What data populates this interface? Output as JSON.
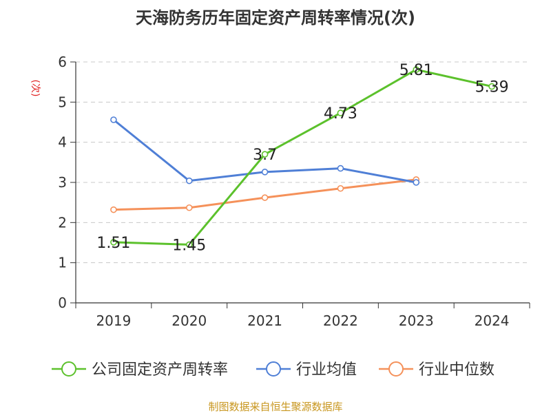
{
  "chart_data": {
    "type": "line",
    "title": "天海防务历年固定资产周转率情况(次)",
    "ylabel": "(次)",
    "xlabel": "",
    "categories": [
      "2019",
      "2020",
      "2021",
      "2022",
      "2023",
      "2024"
    ],
    "ylim": [
      0,
      6
    ],
    "yticks": [
      0,
      1,
      2,
      3,
      4,
      5,
      6
    ],
    "grid": true,
    "legend_position": "bottom",
    "series": [
      {
        "name": "公司固定资产周转率",
        "color": "#5cc12c",
        "values": [
          1.51,
          1.45,
          3.7,
          4.73,
          5.81,
          5.39
        ],
        "labels": [
          "1.51",
          "1.45",
          "3.7",
          "4.73",
          "5.81",
          "5.39"
        ]
      },
      {
        "name": "行业均值",
        "color": "#4f7fd6",
        "values": [
          4.56,
          3.04,
          3.26,
          3.35,
          3.0,
          null
        ]
      },
      {
        "name": "行业中位数",
        "color": "#f5915a",
        "values": [
          2.32,
          2.37,
          2.62,
          2.85,
          3.07,
          null
        ]
      }
    ],
    "source": "制图数据来自恒生聚源数据库"
  }
}
